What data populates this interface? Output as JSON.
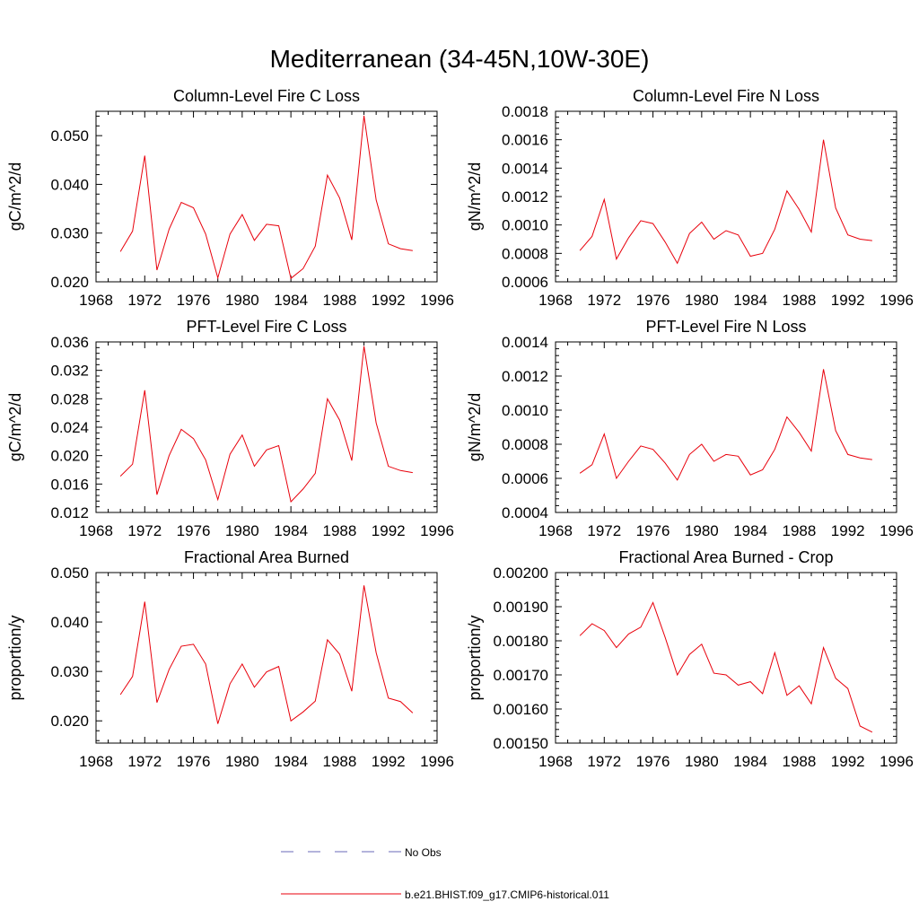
{
  "title": "Mediterranean (34-45N,10W-30E)",
  "legend": {
    "entries": [
      {
        "label": "No Obs",
        "color": "#6a6ab8",
        "style": "dashed"
      },
      {
        "label": "b.e21.BHIST.f09_g17.CMIP6-historical.011",
        "color": "#e8000b",
        "style": "solid"
      }
    ]
  },
  "chart_data": [
    {
      "type": "line",
      "title": "Column-Level Fire C Loss",
      "ylabel": "gC/m^2/d",
      "xlim": [
        1968,
        1996
      ],
      "ylim": [
        0.02,
        0.055
      ],
      "xticks": [
        1968,
        1972,
        1976,
        1980,
        1984,
        1988,
        1992,
        1996
      ],
      "yticks": [
        0.02,
        0.03,
        0.04,
        0.05
      ],
      "ytick_labels": [
        "0.020",
        "0.030",
        "0.040",
        "0.050"
      ],
      "x": [
        1970,
        1971,
        1972,
        1973,
        1974,
        1975,
        1976,
        1977,
        1978,
        1979,
        1980,
        1981,
        1982,
        1983,
        1984,
        1985,
        1986,
        1987,
        1988,
        1989,
        1990,
        1991,
        1992,
        1993,
        1994
      ],
      "series": [
        {
          "name": "b.e21.BHIST.f09_g17.CMIP6-historical.011",
          "color": "#e8000b",
          "values": [
            0.0262,
            0.0304,
            0.0459,
            0.0224,
            0.0308,
            0.0363,
            0.0352,
            0.0298,
            0.0208,
            0.0298,
            0.0338,
            0.0285,
            0.0318,
            0.0315,
            0.0207,
            0.0227,
            0.0273,
            0.0419,
            0.0372,
            0.0286,
            0.0541,
            0.0368,
            0.0278,
            0.0268,
            0.0264
          ]
        }
      ]
    },
    {
      "type": "line",
      "title": "Column-Level Fire N Loss",
      "ylabel": "gN/m^2/d",
      "xlim": [
        1968,
        1996
      ],
      "ylim": [
        0.0006,
        0.0018
      ],
      "xticks": [
        1968,
        1972,
        1976,
        1980,
        1984,
        1988,
        1992,
        1996
      ],
      "yticks": [
        0.0006,
        0.0008,
        0.001,
        0.0012,
        0.0014,
        0.0016,
        0.0018
      ],
      "ytick_labels": [
        "0.0006",
        "0.0008",
        "0.0010",
        "0.0012",
        "0.0014",
        "0.0016",
        "0.0018"
      ],
      "x": [
        1970,
        1971,
        1972,
        1973,
        1974,
        1975,
        1976,
        1977,
        1978,
        1979,
        1980,
        1981,
        1982,
        1983,
        1984,
        1985,
        1986,
        1987,
        1988,
        1989,
        1990,
        1991,
        1992,
        1993,
        1994
      ],
      "series": [
        {
          "name": "b.e21.BHIST.f09_g17.CMIP6-historical.011",
          "color": "#e8000b",
          "values": [
            0.00082,
            0.00092,
            0.00118,
            0.00076,
            0.00091,
            0.00103,
            0.00101,
            0.00088,
            0.00073,
            0.00094,
            0.00102,
            0.0009,
            0.00096,
            0.00093,
            0.00078,
            0.0008,
            0.00097,
            0.00124,
            0.00111,
            0.00095,
            0.0016,
            0.00112,
            0.00093,
            0.0009,
            0.00089
          ]
        }
      ]
    },
    {
      "type": "line",
      "title": "PFT-Level Fire C Loss",
      "ylabel": "gC/m^2/d",
      "xlim": [
        1968,
        1996
      ],
      "ylim": [
        0.012,
        0.036
      ],
      "xticks": [
        1968,
        1972,
        1976,
        1980,
        1984,
        1988,
        1992,
        1996
      ],
      "yticks": [
        0.012,
        0.016,
        0.02,
        0.024,
        0.028,
        0.032,
        0.036
      ],
      "ytick_labels": [
        "0.012",
        "0.016",
        "0.020",
        "0.024",
        "0.028",
        "0.032",
        "0.036"
      ],
      "x": [
        1970,
        1971,
        1972,
        1973,
        1974,
        1975,
        1976,
        1977,
        1978,
        1979,
        1980,
        1981,
        1982,
        1983,
        1984,
        1985,
        1986,
        1987,
        1988,
        1989,
        1990,
        1991,
        1992,
        1993,
        1994
      ],
      "series": [
        {
          "name": "b.e21.BHIST.f09_g17.CMIP6-historical.011",
          "color": "#e8000b",
          "values": [
            0.0171,
            0.0188,
            0.0292,
            0.0145,
            0.02,
            0.0237,
            0.0224,
            0.0194,
            0.0138,
            0.0202,
            0.0229,
            0.0185,
            0.0208,
            0.0214,
            0.0135,
            0.0153,
            0.0175,
            0.028,
            0.025,
            0.0193,
            0.0354,
            0.0246,
            0.0185,
            0.0179,
            0.0176
          ]
        }
      ]
    },
    {
      "type": "line",
      "title": "PFT-Level Fire N Loss",
      "ylabel": "gN/m^2/d",
      "xlim": [
        1968,
        1996
      ],
      "ylim": [
        0.0004,
        0.0014
      ],
      "xticks": [
        1968,
        1972,
        1976,
        1980,
        1984,
        1988,
        1992,
        1996
      ],
      "yticks": [
        0.0004,
        0.0006,
        0.0008,
        0.001,
        0.0012,
        0.0014
      ],
      "ytick_labels": [
        "0.0004",
        "0.0006",
        "0.0008",
        "0.0010",
        "0.0012",
        "0.0014"
      ],
      "x": [
        1970,
        1971,
        1972,
        1973,
        1974,
        1975,
        1976,
        1977,
        1978,
        1979,
        1980,
        1981,
        1982,
        1983,
        1984,
        1985,
        1986,
        1987,
        1988,
        1989,
        1990,
        1991,
        1992,
        1993,
        1994
      ],
      "series": [
        {
          "name": "b.e21.BHIST.f09_g17.CMIP6-historical.011",
          "color": "#e8000b",
          "values": [
            0.00063,
            0.00068,
            0.00086,
            0.0006,
            0.0007,
            0.00079,
            0.00077,
            0.00069,
            0.00059,
            0.00074,
            0.0008,
            0.0007,
            0.00074,
            0.00073,
            0.00062,
            0.00065,
            0.00077,
            0.00096,
            0.00087,
            0.00076,
            0.00124,
            0.00088,
            0.00074,
            0.00072,
            0.00071
          ]
        }
      ]
    },
    {
      "type": "line",
      "title": "Fractional Area Burned",
      "ylabel": "proportion/y",
      "xlim": [
        1968,
        1996
      ],
      "ylim": [
        0.0155,
        0.05
      ],
      "xticks": [
        1968,
        1972,
        1976,
        1980,
        1984,
        1988,
        1992,
        1996
      ],
      "yticks": [
        0.02,
        0.03,
        0.04,
        0.05
      ],
      "ytick_labels": [
        "0.020",
        "0.030",
        "0.040",
        "0.050"
      ],
      "x": [
        1970,
        1971,
        1972,
        1973,
        1974,
        1975,
        1976,
        1977,
        1978,
        1979,
        1980,
        1981,
        1982,
        1983,
        1984,
        1985,
        1986,
        1987,
        1988,
        1989,
        1990,
        1991,
        1992,
        1993,
        1994
      ],
      "series": [
        {
          "name": "b.e21.BHIST.f09_g17.CMIP6-historical.011",
          "color": "#e8000b",
          "values": [
            0.0253,
            0.029,
            0.0441,
            0.0237,
            0.0304,
            0.0351,
            0.0355,
            0.0315,
            0.0194,
            0.0275,
            0.0315,
            0.0268,
            0.0299,
            0.031,
            0.02,
            0.0218,
            0.024,
            0.0364,
            0.0335,
            0.026,
            0.0474,
            0.0338,
            0.0246,
            0.0239,
            0.0216
          ]
        }
      ]
    },
    {
      "type": "line",
      "title": "Fractional Area Burned - Crop",
      "ylabel": "proportion/y",
      "xlim": [
        1968,
        1996
      ],
      "ylim": [
        0.0015,
        0.002
      ],
      "xticks": [
        1968,
        1972,
        1976,
        1980,
        1984,
        1988,
        1992,
        1996
      ],
      "yticks": [
        0.0015,
        0.0016,
        0.0017,
        0.0018,
        0.0019,
        0.002
      ],
      "ytick_labels": [
        "0.00150",
        "0.00160",
        "0.00170",
        "0.00180",
        "0.00190",
        "0.00200"
      ],
      "x": [
        1970,
        1971,
        1972,
        1973,
        1974,
        1975,
        1976,
        1977,
        1978,
        1979,
        1980,
        1981,
        1982,
        1983,
        1984,
        1985,
        1986,
        1987,
        1988,
        1989,
        1990,
        1991,
        1992,
        1993,
        1994
      ],
      "series": [
        {
          "name": "b.e21.BHIST.f09_g17.CMIP6-historical.011",
          "color": "#e8000b",
          "values": [
            0.001815,
            0.00185,
            0.00183,
            0.00178,
            0.00182,
            0.00184,
            0.001912,
            0.00181,
            0.0017,
            0.00176,
            0.00179,
            0.001705,
            0.0017,
            0.00167,
            0.00168,
            0.001645,
            0.001765,
            0.00164,
            0.001668,
            0.001615,
            0.00178,
            0.00169,
            0.00166,
            0.00155,
            0.001532
          ]
        }
      ]
    }
  ]
}
